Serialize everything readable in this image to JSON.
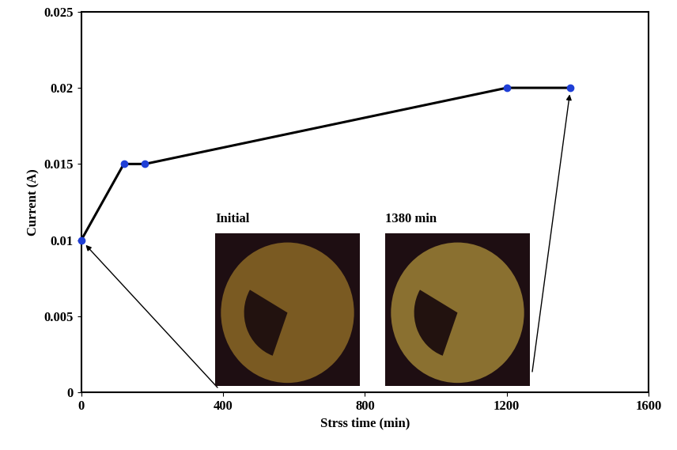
{
  "chart_data": {
    "type": "line",
    "x_label": "Strss time (min)",
    "y_label": "Current (A)",
    "x": [
      0,
      120,
      180,
      1200,
      1380
    ],
    "series": [
      {
        "color": "#000000",
        "marker_color": "#1f3fd6",
        "marker": "o",
        "line_style": "solid",
        "values": [
          0.01,
          0.015,
          0.015,
          0.02,
          0.02
        ]
      }
    ],
    "xlim": [
      0,
      1600
    ],
    "xticks": [
      0,
      400,
      800,
      1200,
      1600
    ],
    "ylim": [
      0,
      0.025
    ],
    "yticks": [
      0,
      0.005,
      0.01,
      0.015,
      0.02,
      0.025
    ],
    "grid": false,
    "annotations": [
      {
        "text": "Initial",
        "x": 0,
        "y": 0.01
      },
      {
        "text": "1380 min",
        "x": 1380,
        "y": 0.02
      }
    ]
  }
}
